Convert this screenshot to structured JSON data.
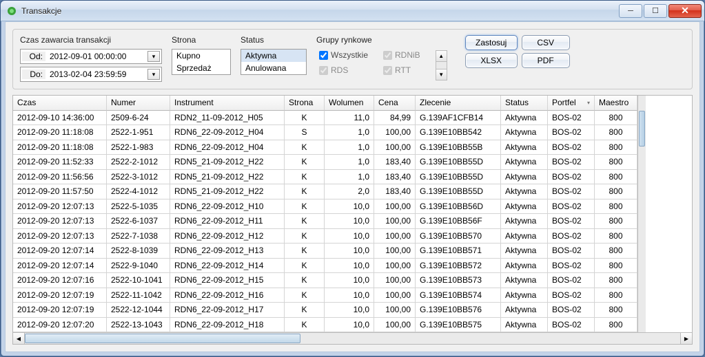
{
  "window": {
    "title": "Transakcje"
  },
  "filters": {
    "time_header": "Czas zawarcia transakcji",
    "from_label": "Od:",
    "from_value": "2012-09-01 00:00:00",
    "to_label": "Do:",
    "to_value": "2013-02-04 23:59:59",
    "side_header": "Strona",
    "side_options": [
      "Kupno",
      "Sprzedaż"
    ],
    "status_header": "Status",
    "status_options": [
      "Aktywna",
      "Anulowana"
    ],
    "status_selected": 0,
    "mg_header": "Grupy rynkowe",
    "mg_all": "Wszystkie",
    "mg_items": [
      "RDNiB",
      "RDS",
      "RTT"
    ]
  },
  "buttons": {
    "apply": "Zastosuj",
    "csv": "CSV",
    "xlsx": "XLSX",
    "pdf": "PDF"
  },
  "columns": [
    "Czas",
    "Numer",
    "Instrument",
    "Strona",
    "Wolumen",
    "Cena",
    "Zlecenie",
    "Status",
    "Portfel",
    "Maestro"
  ],
  "rows": [
    [
      "2012-09-10 14:36:00",
      "2509-6-24",
      "RDN2_11-09-2012_H05",
      "K",
      "11,0",
      "84,99",
      "G.139AF1CFB14",
      "Aktywna",
      "BOS-02",
      "800"
    ],
    [
      "2012-09-20 11:18:08",
      "2522-1-951",
      "RDN6_22-09-2012_H04",
      "S",
      "1,0",
      "100,00",
      "G.139E10BB542",
      "Aktywna",
      "BOS-02",
      "800"
    ],
    [
      "2012-09-20 11:18:08",
      "2522-1-983",
      "RDN6_22-09-2012_H04",
      "K",
      "1,0",
      "100,00",
      "G.139E10BB55B",
      "Aktywna",
      "BOS-02",
      "800"
    ],
    [
      "2012-09-20 11:52:33",
      "2522-2-1012",
      "RDN5_21-09-2012_H22",
      "K",
      "1,0",
      "183,40",
      "G.139E10BB55D",
      "Aktywna",
      "BOS-02",
      "800"
    ],
    [
      "2012-09-20 11:56:56",
      "2522-3-1012",
      "RDN5_21-09-2012_H22",
      "K",
      "1,0",
      "183,40",
      "G.139E10BB55D",
      "Aktywna",
      "BOS-02",
      "800"
    ],
    [
      "2012-09-20 11:57:50",
      "2522-4-1012",
      "RDN5_21-09-2012_H22",
      "K",
      "2,0",
      "183,40",
      "G.139E10BB55D",
      "Aktywna",
      "BOS-02",
      "800"
    ],
    [
      "2012-09-20 12:07:13",
      "2522-5-1035",
      "RDN6_22-09-2012_H10",
      "K",
      "10,0",
      "100,00",
      "G.139E10BB56D",
      "Aktywna",
      "BOS-02",
      "800"
    ],
    [
      "2012-09-20 12:07:13",
      "2522-6-1037",
      "RDN6_22-09-2012_H11",
      "K",
      "10,0",
      "100,00",
      "G.139E10BB56F",
      "Aktywna",
      "BOS-02",
      "800"
    ],
    [
      "2012-09-20 12:07:13",
      "2522-7-1038",
      "RDN6_22-09-2012_H12",
      "K",
      "10,0",
      "100,00",
      "G.139E10BB570",
      "Aktywna",
      "BOS-02",
      "800"
    ],
    [
      "2012-09-20 12:07:14",
      "2522-8-1039",
      "RDN6_22-09-2012_H13",
      "K",
      "10,0",
      "100,00",
      "G.139E10BB571",
      "Aktywna",
      "BOS-02",
      "800"
    ],
    [
      "2012-09-20 12:07:14",
      "2522-9-1040",
      "RDN6_22-09-2012_H14",
      "K",
      "10,0",
      "100,00",
      "G.139E10BB572",
      "Aktywna",
      "BOS-02",
      "800"
    ],
    [
      "2012-09-20 12:07:16",
      "2522-10-1041",
      "RDN6_22-09-2012_H15",
      "K",
      "10,0",
      "100,00",
      "G.139E10BB573",
      "Aktywna",
      "BOS-02",
      "800"
    ],
    [
      "2012-09-20 12:07:19",
      "2522-11-1042",
      "RDN6_22-09-2012_H16",
      "K",
      "10,0",
      "100,00",
      "G.139E10BB574",
      "Aktywna",
      "BOS-02",
      "800"
    ],
    [
      "2012-09-20 12:07:19",
      "2522-12-1044",
      "RDN6_22-09-2012_H17",
      "K",
      "10,0",
      "100,00",
      "G.139E10BB576",
      "Aktywna",
      "BOS-02",
      "800"
    ],
    [
      "2012-09-20 12:07:20",
      "2522-13-1043",
      "RDN6_22-09-2012_H18",
      "K",
      "10,0",
      "100,00",
      "G.139E10BB575",
      "Aktywna",
      "BOS-02",
      "800"
    ]
  ],
  "colAlign": [
    "",
    "",
    "",
    "c",
    "r",
    "r",
    "",
    "",
    "",
    "c"
  ]
}
